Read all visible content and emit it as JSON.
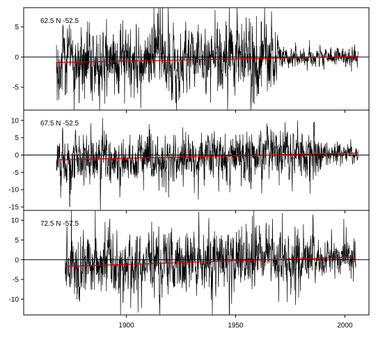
{
  "chart_data": [
    {
      "type": "line",
      "title": "62.5 N  -52.5",
      "xlim": [
        1853,
        2011
      ],
      "ylim": [
        -8.8,
        8.2
      ],
      "yticks": [
        -5,
        0,
        5
      ],
      "xticks": [
        1900,
        1950,
        2000
      ],
      "start_year": 1868,
      "end_year": 2006,
      "noise_early": 3.2,
      "noise_late": 0.9,
      "late_transition_year": 1965,
      "trend": {
        "x": [
          1868,
          2006
        ],
        "y": [
          -0.9,
          0.1
        ],
        "color": "#cc0000"
      },
      "zero_line": true
    },
    {
      "type": "line",
      "title": "67.5 N  -52.5",
      "xlim": [
        1853,
        2011
      ],
      "ylim": [
        -16,
        13
      ],
      "yticks": [
        -15,
        -10,
        -5,
        0,
        5,
        10
      ],
      "xticks": [
        1900,
        1950,
        2000
      ],
      "start_year": 1868,
      "end_year": 2006,
      "noise_early": 4.0,
      "noise_late": 1.4,
      "late_transition_year": 1985,
      "trend": {
        "x": [
          1868,
          2006
        ],
        "y": [
          -1.4,
          0.6
        ],
        "color": "#cc0000"
      },
      "zero_line": true
    },
    {
      "type": "line",
      "title": "72.5 N  -57.5",
      "xlim": [
        1853,
        2011
      ],
      "ylim": [
        -14,
        12.5
      ],
      "yticks": [
        -10,
        -5,
        0,
        5,
        10
      ],
      "xticks": [
        1900,
        1950,
        2000
      ],
      "start_year": 1872,
      "end_year": 2005,
      "noise_early": 4.2,
      "noise_late": 2.4,
      "late_transition_year": 1980,
      "trend": {
        "x": [
          1872,
          2005
        ],
        "y": [
          -1.7,
          0.7
        ],
        "color": "#cc0000"
      },
      "zero_line": true
    }
  ]
}
